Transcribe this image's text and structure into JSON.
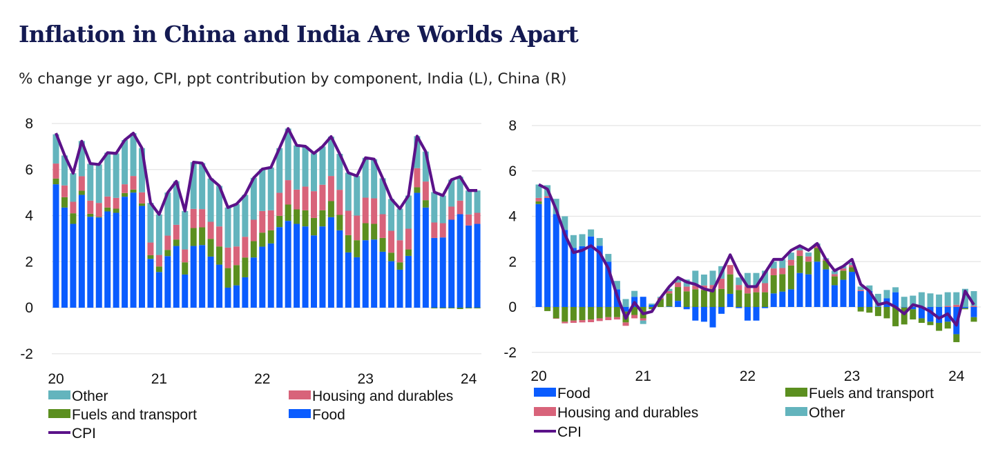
{
  "title": "Inflation in China and India Are Worlds Apart",
  "subtitle": "% change yr ago, CPI, ppt contribution by component, India (L), China (R)",
  "colors": {
    "Food": "#0a5cff",
    "Fuels and transport": "#5b8f1f",
    "Housing and durables": "#d8637a",
    "Other": "#63b4bd",
    "CPI": "#5b1289"
  },
  "chart_data": [
    {
      "type": "bar",
      "stacked": true,
      "country": "India",
      "ylim": [
        -2,
        8
      ],
      "yticks": [
        "-2",
        "0",
        "2",
        "4",
        "6",
        "8"
      ],
      "xtick_labels": [
        "20",
        "21",
        "22",
        "23",
        "24"
      ],
      "grid": true,
      "legend_placement": "bottom",
      "legend": [
        "Other",
        "Housing and durables",
        "Fuels and transport",
        "Food",
        "CPI"
      ],
      "categories": [
        "2020-01",
        "2020-02",
        "2020-03",
        "2020-04",
        "2020-05",
        "2020-06",
        "2020-07",
        "2020-08",
        "2020-09",
        "2020-10",
        "2020-11",
        "2020-12",
        "2021-01",
        "2021-02",
        "2021-03",
        "2021-04",
        "2021-05",
        "2021-06",
        "2021-07",
        "2021-08",
        "2021-09",
        "2021-10",
        "2021-11",
        "2021-12",
        "2022-01",
        "2022-02",
        "2022-03",
        "2022-04",
        "2022-05",
        "2022-06",
        "2022-07",
        "2022-08",
        "2022-09",
        "2022-10",
        "2022-11",
        "2022-12",
        "2023-01",
        "2023-02",
        "2023-03",
        "2023-04",
        "2023-05",
        "2023-06",
        "2023-07",
        "2023-08",
        "2023-09",
        "2023-10",
        "2023-11",
        "2023-12",
        "2024-01",
        "2024-02"
      ],
      "series": [
        {
          "name": "Food",
          "values": [
            5.36,
            4.35,
            3.64,
            4.9,
            3.95,
            3.92,
            4.18,
            4.12,
            4.82,
            5.0,
            4.42,
            2.12,
            1.55,
            2.24,
            2.68,
            1.44,
            2.68,
            2.72,
            2.22,
            1.87,
            0.87,
            0.97,
            1.32,
            2.18,
            2.65,
            2.79,
            3.5,
            3.77,
            3.64,
            3.53,
            3.14,
            3.53,
            3.93,
            3.36,
            2.4,
            2.19,
            2.93,
            2.96,
            2.43,
            2.02,
            1.65,
            2.25,
            4.99,
            4.35,
            3.03,
            3.05,
            3.82,
            4.06,
            3.57,
            3.64
          ]
        },
        {
          "name": "Fuels and transport",
          "values": [
            0.25,
            0.45,
            0.46,
            0.18,
            0.13,
            0.03,
            0.17,
            0.18,
            0.16,
            0.13,
            0.11,
            0.16,
            0.24,
            0.27,
            0.28,
            0.53,
            0.78,
            0.77,
            0.77,
            0.79,
            0.85,
            0.88,
            0.86,
            0.71,
            0.61,
            0.57,
            0.49,
            0.71,
            0.63,
            0.7,
            0.76,
            0.7,
            0.7,
            0.67,
            0.75,
            0.74,
            0.74,
            0.68,
            0.6,
            0.37,
            0.32,
            0.28,
            0.24,
            0.32,
            -0.03,
            -0.03,
            -0.03,
            -0.06,
            -0.03,
            -0.03
          ]
        },
        {
          "name": "Housing and durables",
          "values": [
            0.65,
            0.51,
            0.5,
            0.63,
            0.57,
            0.6,
            0.48,
            0.47,
            0.38,
            0.59,
            0.48,
            0.55,
            0.5,
            0.62,
            0.64,
            0.56,
            0.83,
            0.79,
            0.74,
            0.87,
            0.89,
            0.81,
            0.9,
            0.93,
            0.94,
            0.87,
            1.0,
            1.06,
            0.86,
            1.03,
            1.16,
            1.11,
            1.09,
            1.09,
            1.06,
            1.07,
            1.11,
            1.11,
            1.03,
            0.95,
            0.96,
            0.9,
            0.83,
            0.81,
            0.67,
            0.62,
            0.57,
            0.59,
            0.48,
            0.48
          ]
        },
        {
          "name": "Other",
          "values": [
            1.27,
            1.3,
            1.24,
            1.53,
            1.6,
            1.67,
            1.9,
            1.93,
            1.92,
            1.86,
            1.92,
            1.72,
            1.76,
            1.87,
            1.89,
            1.67,
            2.03,
            2.0,
            1.88,
            1.76,
            1.74,
            1.84,
            1.82,
            1.82,
            1.82,
            1.86,
            1.94,
            2.24,
            1.92,
            1.75,
            1.64,
            1.66,
            1.71,
            1.56,
            1.65,
            1.72,
            1.73,
            1.7,
            1.56,
            1.38,
            1.37,
            1.44,
            1.39,
            1.3,
            1.32,
            1.2,
            1.17,
            1.04,
            1.04,
            0.97
          ]
        },
        {
          "name": "CPI",
          "type": "line",
          "values": [
            7.58,
            6.63,
            5.84,
            7.23,
            6.26,
            6.22,
            6.73,
            6.7,
            7.28,
            7.58,
            6.93,
            4.55,
            4.05,
            5.0,
            5.49,
            4.2,
            6.32,
            6.28,
            5.61,
            5.29,
            4.35,
            4.5,
            4.9,
            5.64,
            6.02,
            6.09,
            6.93,
            7.78,
            7.05,
            7.01,
            6.7,
            7.0,
            7.43,
            6.68,
            5.86,
            5.72,
            6.51,
            6.45,
            5.62,
            4.72,
            4.3,
            4.87,
            7.45,
            6.78,
            5.02,
            4.87,
            5.56,
            5.69,
            5.09,
            5.09
          ]
        }
      ]
    },
    {
      "type": "bar",
      "stacked": true,
      "country": "China",
      "ylim": [
        -2,
        8
      ],
      "yticks": [
        "-2",
        "0",
        "2",
        "4",
        "6",
        "8"
      ],
      "xtick_labels": [
        "20",
        "21",
        "22",
        "23",
        "24"
      ],
      "grid": true,
      "legend_placement": "bottom",
      "legend": [
        "Food",
        "Fuels and transport",
        "Housing and durables",
        "Other",
        "CPI"
      ],
      "categories": [
        "2020-01",
        "2020-02",
        "2020-03",
        "2020-04",
        "2020-05",
        "2020-06",
        "2020-07",
        "2020-08",
        "2020-09",
        "2020-10",
        "2020-11",
        "2020-12",
        "2021-01",
        "2021-02",
        "2021-03",
        "2021-04",
        "2021-05",
        "2021-06",
        "2021-07",
        "2021-08",
        "2021-09",
        "2021-10",
        "2021-11",
        "2021-12",
        "2022-01",
        "2022-02",
        "2022-03",
        "2022-04",
        "2022-05",
        "2022-06",
        "2022-07",
        "2022-08",
        "2022-09",
        "2022-10",
        "2022-11",
        "2022-12",
        "2023-01",
        "2023-02",
        "2023-03",
        "2023-04",
        "2023-05",
        "2023-06",
        "2023-07",
        "2023-08",
        "2023-09",
        "2023-10",
        "2023-11",
        "2023-12",
        "2024-01",
        "2024-02",
        "2024-03"
      ],
      "series": [
        {
          "name": "Food",
          "values": [
            4.54,
            4.81,
            4.1,
            3.4,
            2.6,
            2.68,
            3.11,
            2.7,
            2.0,
            0.78,
            -0.2,
            0.45,
            0.45,
            0.1,
            0.0,
            0.02,
            0.27,
            -0.1,
            -0.6,
            -0.65,
            -0.9,
            -0.3,
            0.58,
            -0.05,
            -0.6,
            -0.6,
            -0.05,
            0.6,
            0.68,
            0.78,
            1.5,
            1.44,
            2.0,
            1.66,
            0.96,
            1.2,
            1.55,
            0.7,
            0.7,
            0.02,
            0.38,
            0.65,
            -0.02,
            -0.1,
            -0.5,
            -0.65,
            -0.7,
            -0.65,
            -1.2,
            -0.05,
            -0.45
          ]
        },
        {
          "name": "Fuels and transport",
          "values": [
            0.12,
            -0.18,
            -0.5,
            -0.65,
            -0.6,
            -0.58,
            -0.55,
            -0.5,
            -0.45,
            -0.45,
            -0.48,
            -0.35,
            -0.5,
            -0.1,
            0.35,
            0.58,
            0.61,
            0.69,
            0.78,
            0.75,
            0.8,
            0.8,
            0.86,
            0.75,
            0.6,
            0.65,
            0.65,
            0.8,
            0.77,
            1.05,
            0.75,
            0.56,
            0.6,
            0.39,
            0.39,
            0.4,
            0.2,
            -0.2,
            -0.25,
            -0.4,
            -0.5,
            -0.85,
            -0.75,
            -0.45,
            -0.2,
            -0.15,
            -0.35,
            -0.3,
            -0.35,
            -0.05,
            -0.2
          ]
        },
        {
          "name": "Housing and durables",
          "values": [
            0.15,
            0.08,
            -0.02,
            -0.07,
            -0.1,
            -0.1,
            -0.12,
            -0.12,
            -0.13,
            -0.1,
            -0.15,
            -0.15,
            -0.1,
            0.0,
            0.05,
            0.1,
            0.2,
            0.21,
            0.16,
            0.2,
            0.17,
            0.45,
            0.41,
            0.22,
            0.3,
            0.3,
            0.4,
            0.3,
            0.27,
            0.25,
            0.25,
            0.23,
            0.1,
            0.05,
            0.1,
            0.1,
            0.1,
            0.05,
            0.0,
            0.0,
            0.0,
            0.0,
            0.0,
            0.0,
            0.0,
            0.0,
            0.0,
            0.05,
            0.1,
            0.0,
            0.05
          ]
        },
        {
          "name": "Other",
          "values": [
            0.59,
            0.48,
            0.67,
            0.6,
            0.57,
            0.53,
            0.31,
            0.34,
            0.34,
            0.37,
            0.35,
            0.26,
            -0.15,
            0.05,
            0.05,
            0.1,
            0.13,
            0.31,
            0.66,
            0.48,
            0.63,
            0.55,
            0.0,
            0.33,
            0.6,
            0.55,
            0.55,
            0.3,
            0.38,
            0.32,
            0.15,
            0.17,
            0.1,
            0.05,
            0.15,
            0.1,
            0.1,
            0.15,
            0.25,
            0.56,
            0.37,
            0.22,
            0.45,
            0.5,
            0.65,
            0.6,
            0.55,
            0.6,
            0.55,
            0.8,
            0.65
          ]
        },
        {
          "name": "CPI",
          "type": "line",
          "values": [
            5.4,
            5.2,
            4.3,
            3.2,
            2.4,
            2.5,
            2.7,
            2.4,
            1.7,
            0.5,
            -0.5,
            0.2,
            -0.3,
            -0.2,
            0.4,
            0.9,
            1.3,
            1.1,
            1.0,
            0.8,
            0.7,
            1.5,
            2.3,
            1.5,
            0.9,
            0.9,
            1.5,
            2.1,
            2.1,
            2.5,
            2.7,
            2.5,
            2.8,
            2.1,
            1.6,
            1.8,
            2.1,
            1.0,
            0.7,
            0.1,
            0.2,
            0.0,
            -0.3,
            0.1,
            0.0,
            -0.2,
            -0.5,
            -0.3,
            -0.8,
            0.7,
            0.1
          ]
        }
      ]
    }
  ]
}
